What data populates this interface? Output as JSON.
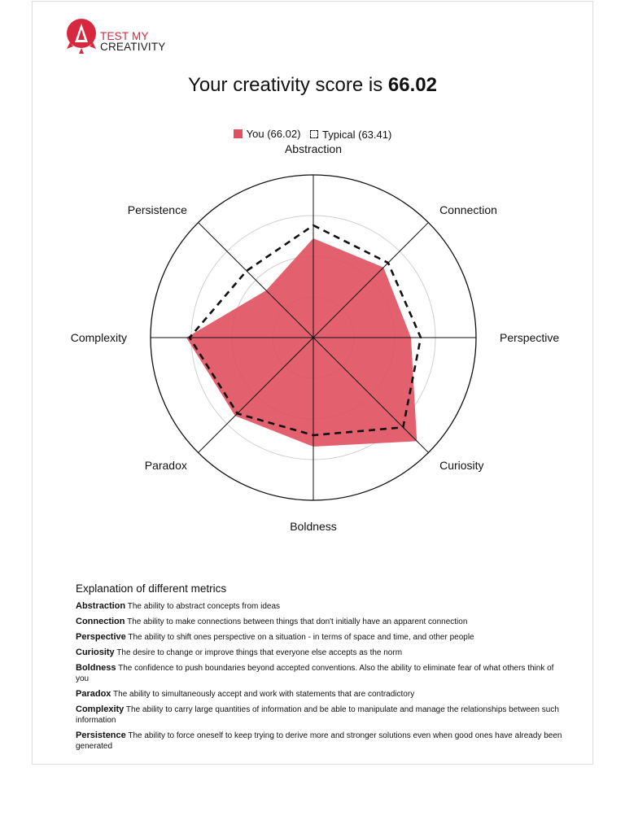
{
  "logo": {
    "line1": "TEST MY",
    "line2": "CREATIVITY",
    "color": "#d8283f"
  },
  "title": {
    "prefix": "Your creativity score is ",
    "score": "66.02"
  },
  "legend": {
    "you": "You (66.02)",
    "typical": "Typical (63.41)"
  },
  "chart_data": {
    "type": "radar",
    "axes": [
      "Abstraction",
      "Connection",
      "Perspective",
      "Curiosity",
      "Boldness",
      "Paradox",
      "Complexity",
      "Persistence"
    ],
    "series": [
      {
        "name": "You (66.02)",
        "values": [
          61,
          61,
          60,
          90,
          67,
          68,
          78,
          41
        ],
        "color": "#e0505f"
      },
      {
        "name": "Typical (63.41)",
        "values": [
          69,
          65,
          66,
          78,
          60,
          66,
          76,
          58
        ],
        "color": "#111111"
      }
    ],
    "range": [
      0,
      100
    ],
    "grid_rings": 4,
    "legend_position": "top"
  },
  "explanation": {
    "heading": "Explanation of different metrics",
    "items": [
      {
        "term": "Abstraction",
        "desc": "The ability to abstract concepts from ideas"
      },
      {
        "term": "Connection",
        "desc": "The ability to make connections between things that don't initially have an apparent connection"
      },
      {
        "term": "Perspective",
        "desc": "The ability to shift ones perspective on a situation - in terms of space and time, and other people"
      },
      {
        "term": "Curiosity",
        "desc": "The desire to change or improve things that everyone else accepts as the norm"
      },
      {
        "term": "Boldness",
        "desc": "The confidence to push boundaries beyond accepted conventions. Also the ability to eliminate fear of what others think of you"
      },
      {
        "term": "Paradox",
        "desc": "The ability to simultaneously accept and work with statements that are contradictory"
      },
      {
        "term": "Complexity",
        "desc": "The ability to carry large quantities of information and be able to manipulate and manage the relationships between such information"
      },
      {
        "term": "Persistence",
        "desc": "The ability to force oneself to keep trying to derive more and stronger solutions even when good ones have already been generated"
      }
    ]
  }
}
